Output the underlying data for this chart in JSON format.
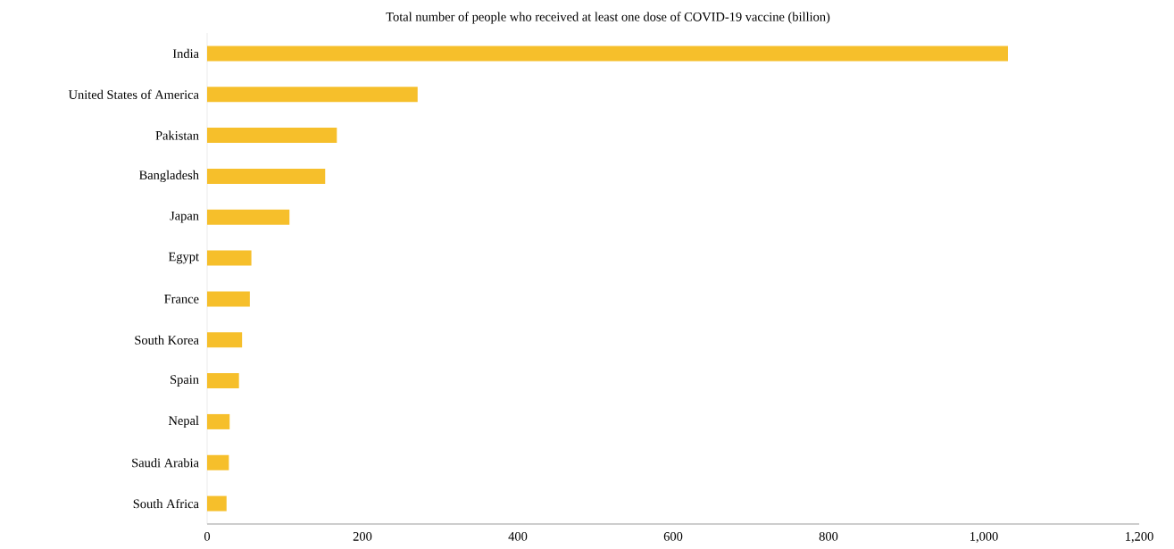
{
  "chart_data": {
    "type": "bar",
    "orientation": "horizontal",
    "title": "Total number of people who received at least one dose of COVID-19 vaccine (billion)",
    "categories": [
      "India",
      "United States of America",
      "Pakistan",
      "Bangladesh",
      "Japan",
      "Egypt",
      "France",
      "South Korea",
      "Spain",
      "Nepal",
      "Saudi Arabia",
      "South Africa"
    ],
    "values": [
      1031,
      271,
      167,
      152,
      106,
      57,
      55,
      45,
      41,
      29,
      28,
      25
    ],
    "color": "#f6bf2b",
    "xlim": [
      0,
      1200
    ],
    "xticks": [
      0,
      200,
      400,
      600,
      800,
      {
        "value": 1000,
        "label": "1,000"
      },
      {
        "value": 1200,
        "label": "1,200"
      }
    ]
  }
}
